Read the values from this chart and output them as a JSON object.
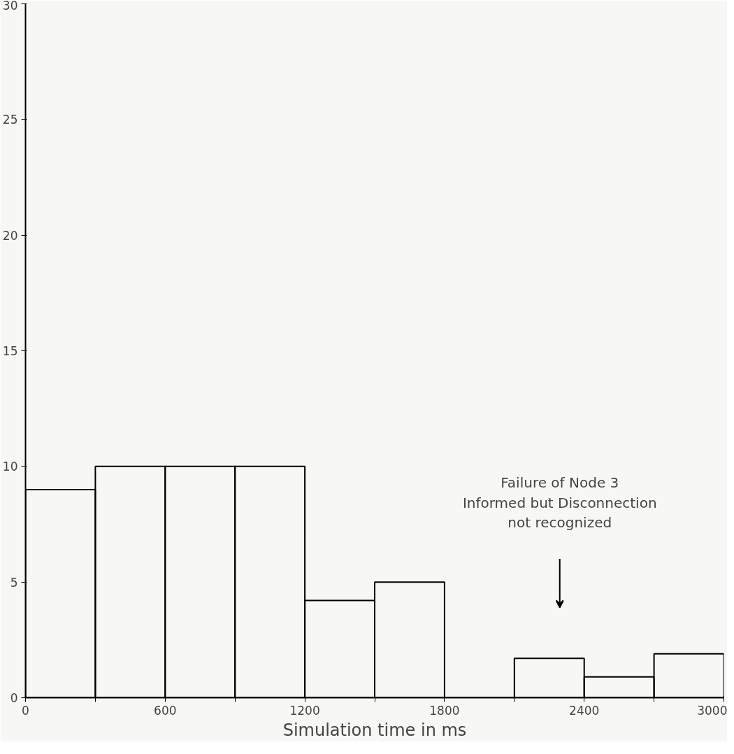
{
  "chart_data": {
    "type": "histogram",
    "xlabel": "Simulation time in ms",
    "bins": [
      0,
      300,
      600,
      900,
      1200,
      1500,
      1800,
      2100,
      2400,
      2700,
      3000
    ],
    "values": [
      9,
      10,
      10,
      10,
      4.2,
      5,
      0,
      1.7,
      0.9,
      1.9
    ],
    "color": "#000000",
    "xlim": [
      0,
      3000
    ],
    "ylim": [
      0,
      30
    ],
    "xticks": [
      0,
      {
        "value": 300,
        "label": null
      },
      600,
      {
        "value": 900,
        "label": null
      },
      1200,
      {
        "value": 1500,
        "label": null
      },
      1800,
      {
        "value": 2100,
        "label": null
      },
      2400,
      {
        "value": 2700,
        "label": null
      },
      3000
    ],
    "yticks": [
      0,
      5,
      10,
      15,
      20,
      25,
      30
    ],
    "grid": false,
    "annotations": [
      "Failure of Node 3\nInformed but Disconnection\nnot recognized"
    ]
  }
}
